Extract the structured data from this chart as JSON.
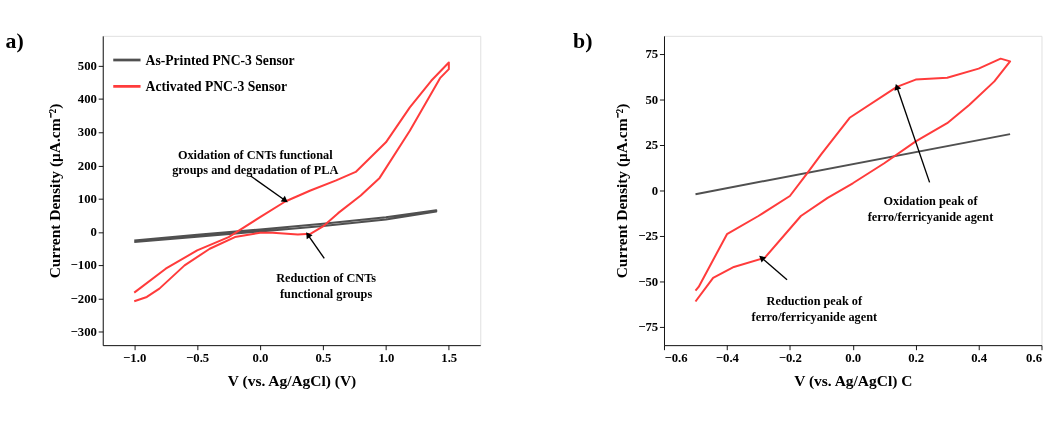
{
  "chart_data": [
    {
      "type": "line",
      "title": "a)",
      "xlabel": "V (vs. Ag/AgCl) (V)",
      "ylabel": "Current Density (μA.cm⁻²)",
      "legend": "top left",
      "grid": false,
      "xlim": [
        -1.25,
        1.75
      ],
      "ylim": [
        -340,
        590
      ],
      "xticks": [
        {
          "value": -1.0,
          "label": "−1.0"
        },
        {
          "value": -0.5,
          "label": "−0.5"
        },
        {
          "value": 0,
          "label": "0.0"
        },
        {
          "value": 0.5,
          "label": "0.5"
        },
        {
          "value": 1.0,
          "label": "1.0"
        },
        {
          "value": 1.5,
          "label": "1.5"
        }
      ],
      "yticks": [
        {
          "value": -300,
          "label": "−300"
        },
        {
          "value": -200,
          "label": "−200"
        },
        {
          "value": -100,
          "label": "−100"
        },
        0,
        100,
        200,
        300,
        400,
        500
      ],
      "series": [
        {
          "name": "As-Printed PNC-3 Sensor",
          "color": "#505050",
          "x": [
            -1.0,
            -0.5,
            0,
            0.5,
            1.0,
            1.4,
            1.4,
            1.0,
            0.5,
            0,
            -0.5,
            -1.0
          ],
          "values": [
            -25,
            -8,
            8,
            25,
            45,
            66,
            62,
            38,
            18,
            2,
            -14,
            -30
          ]
        },
        {
          "name": "Activated PNC-3 Sensor",
          "color": "#ff3b3b",
          "x": [
            -1.0,
            -0.75,
            -0.5,
            -0.25,
            0,
            0.2,
            0.4,
            0.6,
            0.76,
            1.0,
            1.19,
            1.36,
            1.5,
            1.5,
            1.43,
            1.19,
            0.95,
            0.8,
            0.62,
            0.5,
            0.4,
            0.3,
            0.1,
            0,
            -0.2,
            -0.4,
            -0.6,
            -0.8,
            -0.9,
            -1.0
          ],
          "values": [
            -182,
            -110,
            -55,
            -15,
            45,
            92,
            125,
            155,
            181,
            270,
            375,
            455,
            510,
            490,
            463,
            305,
            163,
            110,
            57,
            17,
            -5,
            -7,
            -2,
            -2,
            -15,
            -50,
            -100,
            -170,
            -195,
            -208
          ]
        }
      ],
      "annotations": [
        {
          "text": "Oxidation of CNTs functional\ngroups and degradation of PLA",
          "x": 0.2,
          "y": 95
        },
        {
          "text": "Reduction of CNTs\nfunctional groups",
          "x": 0.38,
          "y": -8
        }
      ]
    },
    {
      "type": "line",
      "title": "b)",
      "xlabel": "V (vs. Ag/AgCl) C",
      "ylabel": "Current Density (μA.cm⁻²)",
      "legend": "top left",
      "grid": false,
      "xlim": [
        -0.6,
        0.6
      ],
      "ylim": [
        -85,
        85
      ],
      "xticks": [
        {
          "value": -0.6,
          "label": "−0.6"
        },
        {
          "value": -0.4,
          "label": "−0.4"
        },
        {
          "value": -0.2,
          "label": "−0.2"
        },
        {
          "value": 0,
          "label": "0.0"
        },
        {
          "value": 0.2,
          "label": "0.2"
        },
        {
          "value": 0.4,
          "label": "0.4"
        },
        {
          "value": 0.6,
          "label": "0.6"
        }
      ],
      "yticks": [
        {
          "value": -75,
          "label": "−75"
        },
        {
          "value": -50,
          "label": "−50"
        },
        {
          "value": -25,
          "label": "−25"
        },
        0,
        25,
        50,
        75
      ],
      "series": [
        {
          "name": "As-Printed PNC-3 Sensor",
          "color": "#505050",
          "x": [
            -0.5,
            0.5
          ],
          "values": [
            -2,
            31
          ]
        },
        {
          "name": "Activated PNC-3 Sensor",
          "color": "#ff3b3b",
          "x": [
            -0.5,
            -0.49,
            -0.4,
            -0.3,
            -0.2,
            -0.147,
            -0.1,
            -0.01,
            0.14,
            0.2,
            0.3,
            0.4,
            0.47,
            0.5,
            0.45,
            0.37,
            0.3,
            0.2,
            0.1,
            0,
            -0.08,
            -0.165,
            -0.28,
            -0.378,
            -0.444,
            -0.5
          ],
          "values": [
            -55,
            -53,
            -24,
            -14,
            -3,
            9,
            20,
            40,
            57,
            61,
            62,
            67,
            72.5,
            71,
            60,
            47,
            37,
            27,
            15,
            4,
            -4,
            -14,
            -37,
            -42,
            -48,
            -61
          ]
        }
      ],
      "annotations": [
        {
          "text": "Oxidation peak of\nferro/ferricyanide agent",
          "x": 0.14,
          "y": 57
        },
        {
          "text": "Reduction peak of\nferro/ferricyanide agent",
          "x": -0.29,
          "y": -37
        }
      ]
    }
  ]
}
